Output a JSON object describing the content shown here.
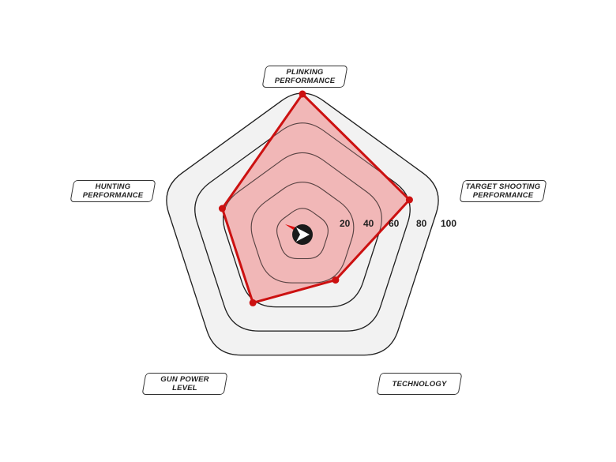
{
  "chart_data": {
    "type": "radar",
    "axes": [
      "PLINKING\nPERFORMANCE",
      "TARGET SHOOTING\nPERFORMANCE",
      "TECHNOLOGY",
      "GUN POWER\nLEVEL",
      "HUNTING\nPERFORMANCE"
    ],
    "values": [
      100,
      80,
      40,
      60,
      60
    ],
    "rlim": [
      0,
      100
    ],
    "ticks": [
      "20",
      "40",
      "60",
      "80",
      "100"
    ],
    "colors": {
      "series_line": "#cc1111",
      "series_fill": "#f0a8a8",
      "ring_fill": "#f2f2f2",
      "ring_line": "#222222"
    }
  }
}
